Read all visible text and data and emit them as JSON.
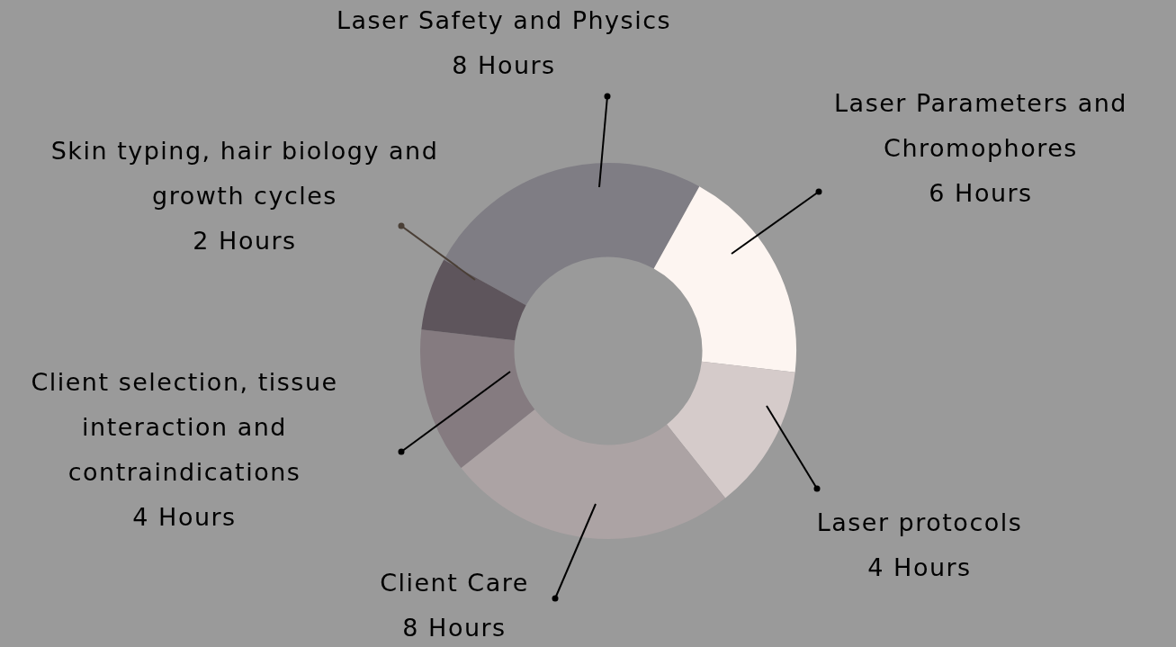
{
  "chart_data": {
    "type": "donut",
    "categories": [
      "Laser Safety and Physics",
      "Laser Parameters and Chromophores",
      "Laser protocols",
      "Client Care",
      "Client selection, tissue interaction and contraindications",
      "Skin typing, hair biology and growth cycles"
    ],
    "values": [
      8,
      6,
      4,
      8,
      4,
      2
    ],
    "colors": [
      "#7f7d84",
      "#fdf5f1",
      "#d5cbca",
      "#aca3a4",
      "#857b80",
      "#5e555c"
    ],
    "value_labels": [
      "8 Hours",
      "6 Hours",
      "4 Hours",
      "8 Hours",
      "4 Hours",
      "2 Hours"
    ]
  }
}
